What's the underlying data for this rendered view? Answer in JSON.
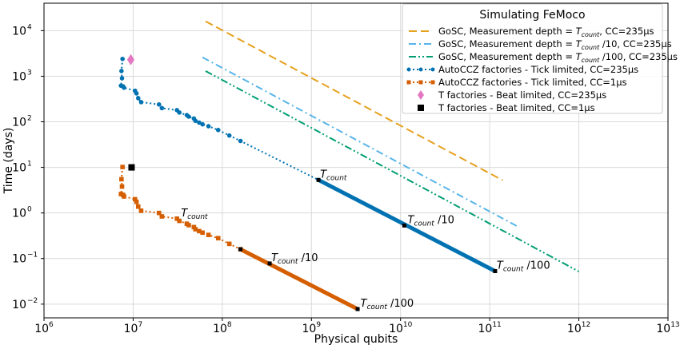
{
  "chart_data": {
    "type": "line",
    "title": "",
    "xlabel": "Physical qubits",
    "ylabel": "Time (days)",
    "xscale": "log",
    "yscale": "log",
    "xlim": [
      1000000,
      10000000000000
    ],
    "ylim": [
      0.005,
      40000
    ],
    "grid": true,
    "x_ticks": [
      {
        "v": 1000000,
        "base": "10",
        "exp": "6"
      },
      {
        "v": 10000000,
        "base": "10",
        "exp": "7"
      },
      {
        "v": 100000000,
        "base": "10",
        "exp": "8"
      },
      {
        "v": 1000000000,
        "base": "10",
        "exp": "9"
      },
      {
        "v": 10000000000,
        "base": "10",
        "exp": "10"
      },
      {
        "v": 100000000000,
        "base": "10",
        "exp": "11"
      },
      {
        "v": 1000000000000,
        "base": "10",
        "exp": "12"
      },
      {
        "v": 10000000000000,
        "base": "10",
        "exp": "13"
      }
    ],
    "y_ticks": [
      {
        "v": 0.01,
        "base": "10",
        "exp": "−2"
      },
      {
        "v": 0.1,
        "base": "10",
        "exp": "−1"
      },
      {
        "v": 1,
        "base": "10",
        "exp": "0"
      },
      {
        "v": 10,
        "base": "10",
        "exp": "1"
      },
      {
        "v": 100,
        "base": "10",
        "exp": "2"
      },
      {
        "v": 1000,
        "base": "10",
        "exp": "3"
      },
      {
        "v": 10000,
        "base": "10",
        "exp": "4"
      }
    ],
    "legend": {
      "title": "Simulating FeMoco",
      "position": "top-right"
    },
    "series": [
      {
        "name": "GoSC, Measurement depth = T_count, CC=235µs",
        "legend_parts": [
          "GoSC, Measurement depth = ",
          "T",
          "count",
          ", CC=235µs"
        ],
        "style": "dashed",
        "color": "#e6a11f",
        "x": [
          65000000,
          140000000000
        ],
        "y": [
          16000,
          5.2
        ]
      },
      {
        "name": "GoSC, Measurement depth = T_count /10, CC=235µs",
        "legend_parts": [
          "GoSC, Measurement depth = ",
          "T",
          "count",
          " /10, CC=235µs"
        ],
        "style": "dashdot",
        "color": "#56b4e9",
        "x": [
          60000000,
          200000000000
        ],
        "y": [
          2600,
          0.52
        ]
      },
      {
        "name": "GoSC,  Measurement depth = T_count /100, CC=235µs",
        "legend_parts": [
          "GoSC,  Measurement depth = ",
          "T",
          "count",
          " /100, CC=235µs"
        ],
        "style": "dashdotdot",
        "color": "#009e73",
        "x": [
          65000000,
          1000000000000
        ],
        "y": [
          1300,
          0.052
        ]
      },
      {
        "name": "AutoCCZ factories - Tick limited, CC=235µs",
        "legend_parts": [
          "AutoCCZ factories - Tick limited, CC=235µs"
        ],
        "style": "dotted-markers",
        "color": "#0072b2",
        "x": [
          7600000,
          7400000,
          7500000,
          7300000,
          7700000,
          7900000,
          10500000,
          10900000,
          11400000,
          12300000,
          19500000,
          21000000,
          31000000,
          33000000,
          40000000,
          42000000,
          48000000,
          50000000,
          55000000,
          60000000,
          70000000,
          90000000,
          120000000,
          160000000,
          1200000000,
          11000000000,
          115000000000
        ],
        "y": [
          2400,
          1300,
          900,
          620,
          600,
          560,
          480,
          420,
          330,
          270,
          240,
          200,
          180,
          160,
          140,
          130,
          118,
          105,
          96,
          88,
          80,
          66,
          50,
          38,
          5.3,
          0.53,
          0.053
        ]
      },
      {
        "name": "AutoCCZ factories - Tick limited, CC=1µs",
        "legend_parts": [
          "AutoCCZ factories - Tick limited, CC=1µs"
        ],
        "style": "dotted-markers",
        "color": "#d55e00",
        "x": [
          7600000,
          7400000,
          7500000,
          7300000,
          7700000,
          7900000,
          10500000,
          10900000,
          11400000,
          12300000,
          19500000,
          21000000,
          31000000,
          33000000,
          40000000,
          42000000,
          48000000,
          50000000,
          55000000,
          60000000,
          70000000,
          90000000,
          120000000,
          160000000,
          340000000,
          3300000000
        ],
        "y": [
          10.2,
          5.5,
          3.8,
          2.6,
          2.5,
          2.3,
          2.0,
          1.75,
          1.38,
          1.12,
          1.0,
          0.84,
          0.75,
          0.67,
          0.58,
          0.54,
          0.49,
          0.44,
          0.4,
          0.37,
          0.33,
          0.28,
          0.21,
          0.16,
          0.078,
          0.0078
        ]
      },
      {
        "name": "T factories - Beat limited, CC=235µs",
        "legend_parts": [
          "T factories - Beat limited, CC=235µs"
        ],
        "style": "marker-diamond",
        "color": "#e377c2",
        "x": [
          9400000
        ],
        "y": [
          2300
        ]
      },
      {
        "name": "T factories - Beat limited, CC=1µs",
        "legend_parts": [
          "T factories - Beat limited, CC=1µs"
        ],
        "style": "marker-square",
        "color": "#000000",
        "x": [
          9600000
        ],
        "y": [
          10
        ]
      }
    ],
    "annotations": [
      {
        "x": 1200000000,
        "y": 5.3,
        "parts": [
          "T",
          "count",
          ""
        ]
      },
      {
        "x": 11500000000,
        "y": 0.53,
        "parts": [
          "T",
          "count",
          " /10"
        ]
      },
      {
        "x": 115000000000,
        "y": 0.053,
        "parts": [
          "T",
          "count",
          " /100"
        ]
      },
      {
        "x": 33000000,
        "y": 0.74,
        "parts": [
          "T",
          "count",
          ""
        ]
      },
      {
        "x": 340000000,
        "y": 0.078,
        "parts": [
          "T",
          "count",
          " /10"
        ]
      },
      {
        "x": 3400000000,
        "y": 0.0078,
        "parts": [
          "T",
          "count",
          " /100"
        ]
      }
    ]
  }
}
